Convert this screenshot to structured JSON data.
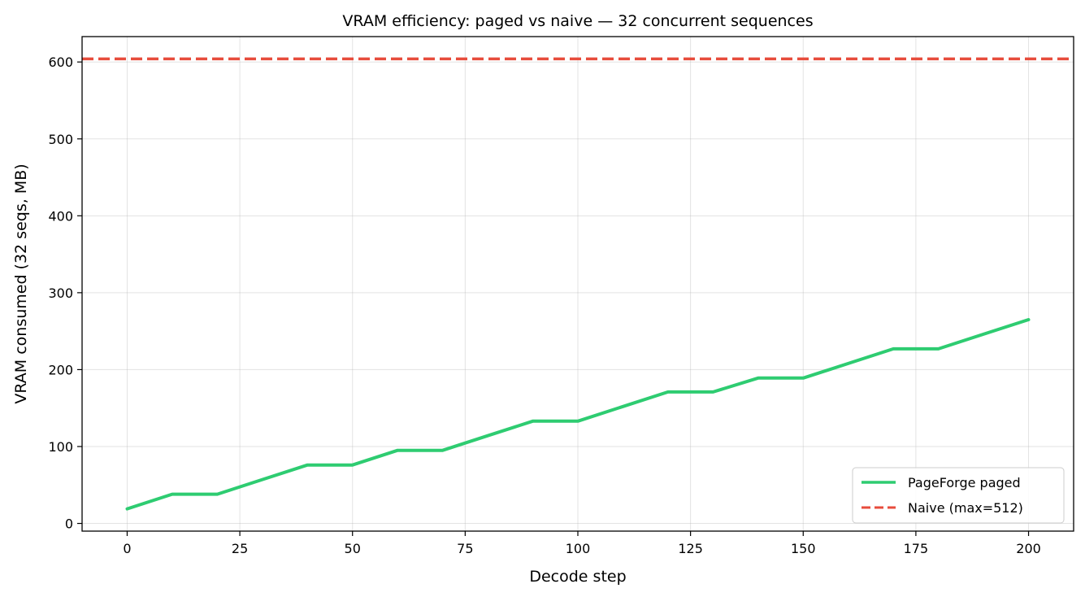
{
  "chart_data": {
    "type": "line",
    "title": "VRAM efficiency: paged vs naive — 32 concurrent sequences",
    "xlabel": "Decode step",
    "ylabel": "VRAM consumed (32 seqs, MB)",
    "xlim": [
      -10,
      210
    ],
    "ylim": [
      -10,
      633
    ],
    "xticks": [
      0,
      25,
      50,
      75,
      100,
      125,
      150,
      175,
      200
    ],
    "yticks": [
      0,
      100,
      200,
      300,
      400,
      500,
      600
    ],
    "grid": true,
    "legend_position": "lower-right",
    "series": [
      {
        "name": "PageForge paged",
        "style": "solid",
        "color": "#2ecc71",
        "x": [
          0,
          10,
          20,
          30,
          40,
          50,
          60,
          70,
          80,
          90,
          100,
          110,
          120,
          130,
          140,
          150,
          160,
          170,
          180,
          190,
          200
        ],
        "y": [
          19,
          38,
          38,
          57,
          76,
          76,
          95,
          95,
          114,
          133,
          133,
          152,
          171,
          171,
          189,
          189,
          208,
          227,
          227,
          246,
          265
        ]
      },
      {
        "name": "Naive (max=512)",
        "style": "dashed",
        "color": "#e74c3c",
        "y_constant": 604
      }
    ]
  }
}
